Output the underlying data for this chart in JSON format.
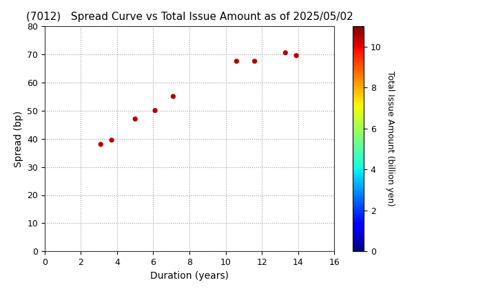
{
  "title": "(7012)   Spread Curve vs Total Issue Amount as of 2025/05/02",
  "xlabel": "Duration (years)",
  "ylabel": "Spread (bp)",
  "colorbar_label": "Total Issue Amount (billion yen)",
  "xlim": [
    0,
    16
  ],
  "ylim": [
    0,
    80
  ],
  "xticks": [
    0,
    2,
    4,
    6,
    8,
    10,
    12,
    14,
    16
  ],
  "yticks": [
    0,
    10,
    20,
    30,
    40,
    50,
    60,
    70,
    80
  ],
  "colorbar_range": [
    0,
    11
  ],
  "colorbar_ticks": [
    0,
    2,
    4,
    6,
    8,
    10
  ],
  "points": [
    {
      "duration": 3.1,
      "spread": 38,
      "amount": 10.5
    },
    {
      "duration": 3.7,
      "spread": 39.5,
      "amount": 10.5
    },
    {
      "duration": 5.0,
      "spread": 47,
      "amount": 10.5
    },
    {
      "duration": 6.1,
      "spread": 50,
      "amount": 10.5
    },
    {
      "duration": 7.1,
      "spread": 55,
      "amount": 10.5
    },
    {
      "duration": 10.6,
      "spread": 67.5,
      "amount": 10.5
    },
    {
      "duration": 11.6,
      "spread": 67.5,
      "amount": 10.5
    },
    {
      "duration": 13.3,
      "spread": 70.5,
      "amount": 10.5
    },
    {
      "duration": 13.9,
      "spread": 69.5,
      "amount": 10.5
    }
  ],
  "background_color": "#ffffff",
  "grid_color": "#999999",
  "marker_size": 18,
  "colormap": "jet",
  "title_fontsize": 11,
  "axis_label_fontsize": 10,
  "tick_fontsize": 9,
  "colorbar_label_fontsize": 9,
  "colorbar_tick_fontsize": 9
}
